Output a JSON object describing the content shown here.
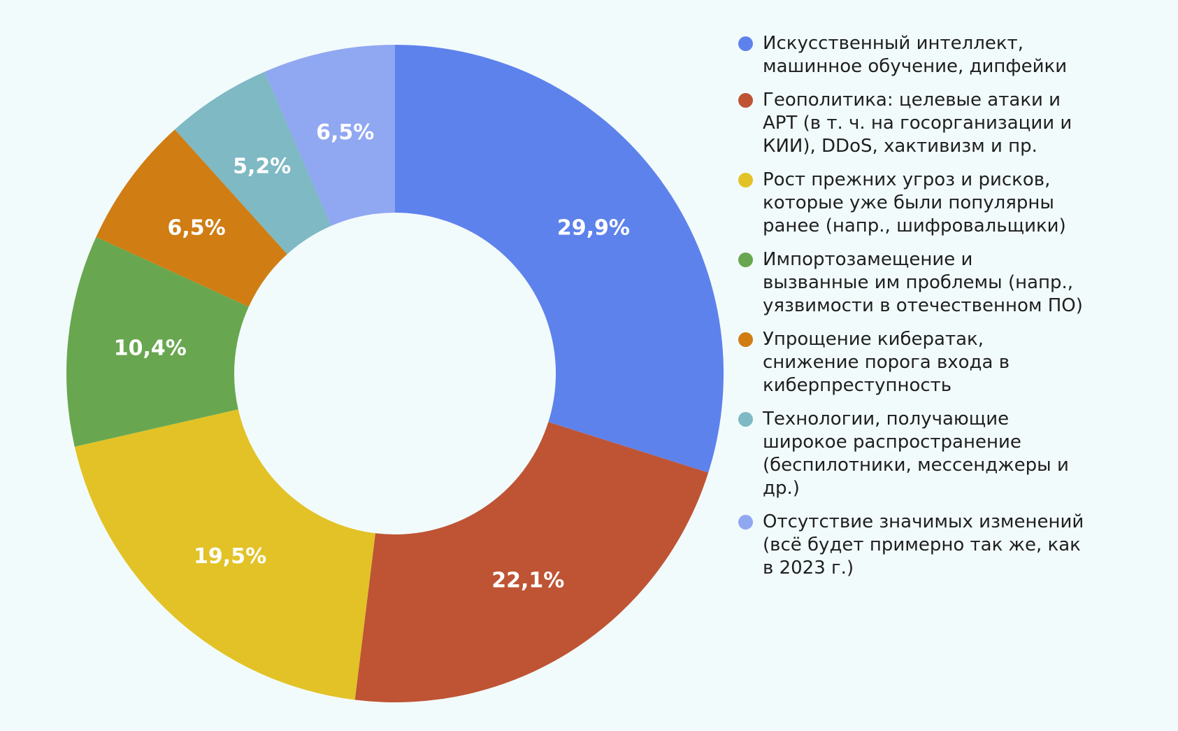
{
  "background": "#F2FBFC",
  "chart_data": {
    "type": "pie",
    "subtype": "donut",
    "hole_ratio": 0.49,
    "start_angle_deg": 0,
    "direction": "clockwise",
    "legend_position": "right",
    "value_label_color": "#ffffff",
    "series": [
      {
        "label": "Искусственный интеллект,\nмашинное обучение, дипфейки",
        "value": 29.9,
        "value_label": "29,9%",
        "color": "#5E82EC"
      },
      {
        "label": "Геополитика: целевые атаки и\nAPT (в т. ч. на госорганизации и\nКИИ), DDoS, хактивизм и пр.",
        "value": 22.1,
        "value_label": "22,1%",
        "color": "#BE5434"
      },
      {
        "label": "Рост прежних угроз и рисков,\nкоторые уже были популярны\nранее (напр., шифровальщики)",
        "value": 19.5,
        "value_label": "19,5%",
        "color": "#E2C226"
      },
      {
        "label": "Импортозамещение и\nвызванные им проблемы (напр.,\nуязвимости в отечественном ПО)",
        "value": 10.4,
        "value_label": "10,4%",
        "color": "#68A74F"
      },
      {
        "label": "Упрощение кибератак,\nснижение порога входа в\nкиберпреступность",
        "value": 6.5,
        "value_label": "6,5%",
        "color": "#D07D13"
      },
      {
        "label": "Технологии, получающие\nширокое распространение\n(беспилотники, мессенджеры и\nдр.)",
        "value": 5.2,
        "value_label": "5,2%",
        "color": "#7EB9C4"
      },
      {
        "label": "Отсутствие значимых изменений\n(всё будет примерно так же, как\nв 2023 г.)",
        "value": 6.5,
        "value_label": "6,5%",
        "color": "#90A7F2"
      }
    ]
  }
}
